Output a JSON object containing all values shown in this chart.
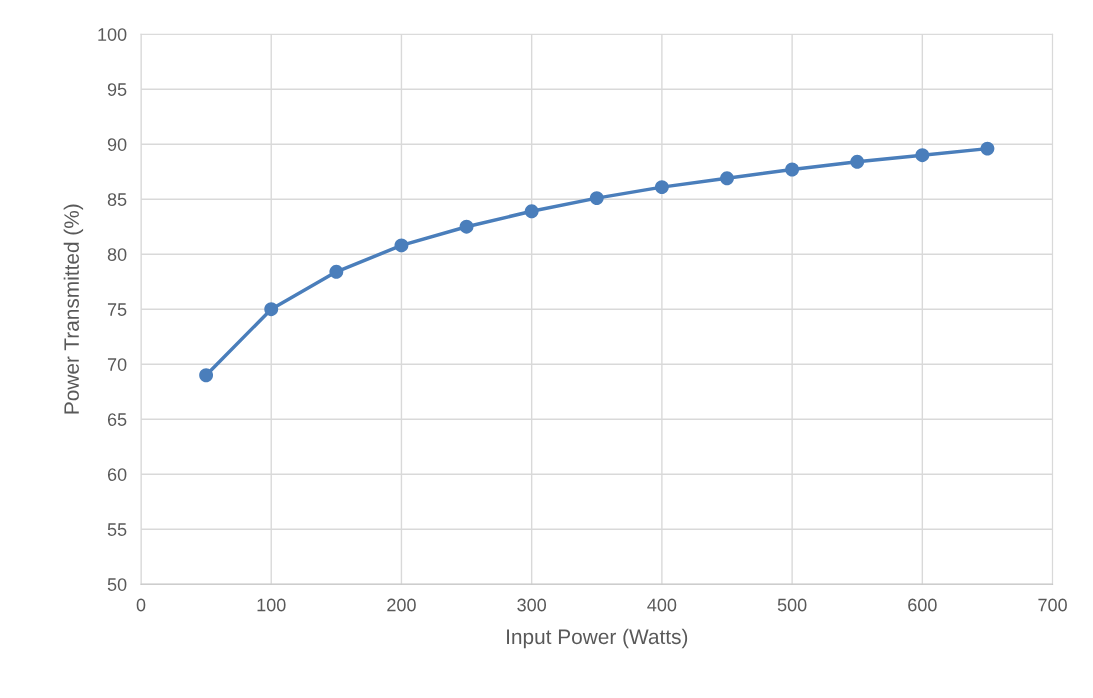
{
  "chart_data": {
    "type": "line",
    "xlabel": "Input Power (Watts)",
    "ylabel": "Power Transmitted (%)",
    "x": [
      50,
      100,
      150,
      200,
      250,
      300,
      350,
      400,
      450,
      500,
      550,
      600,
      650
    ],
    "series": [
      {
        "color": "#4a7ebb",
        "values": [
          69.0,
          75.0,
          78.4,
          80.8,
          82.5,
          83.9,
          85.1,
          86.1,
          86.9,
          87.7,
          88.4,
          89.0,
          89.6
        ]
      }
    ],
    "xlim": [
      0,
      700
    ],
    "xticks": [
      0,
      100,
      200,
      300,
      400,
      500,
      600,
      700
    ],
    "ylim": [
      50,
      100
    ],
    "yticks": [
      50,
      55,
      60,
      65,
      70,
      75,
      80,
      85,
      90,
      95,
      100
    ],
    "grid": true,
    "marker": "circle",
    "line_style": "solid"
  }
}
